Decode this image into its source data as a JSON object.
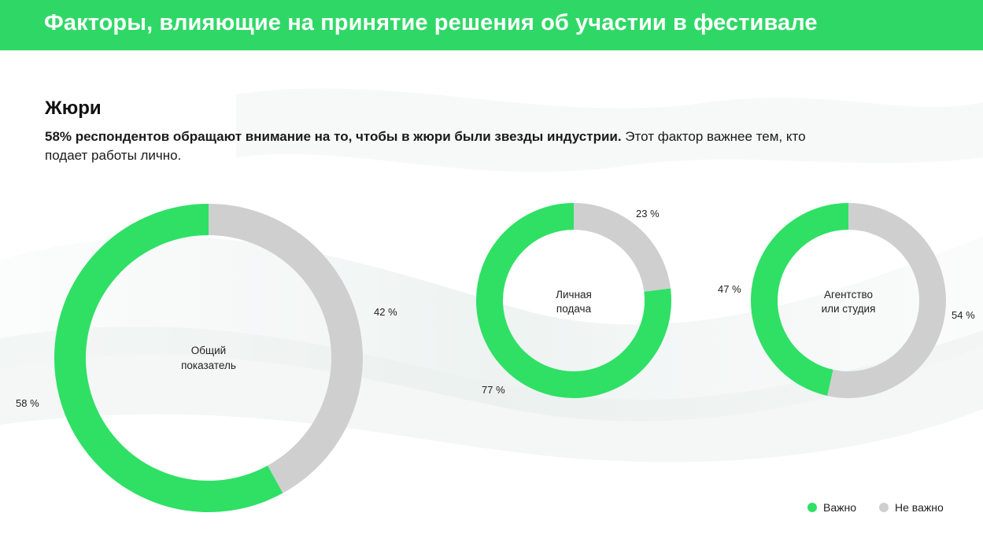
{
  "header": {
    "title": "Факторы, влияющие на принятие решения об участии в фестивале"
  },
  "section": {
    "title": "Жюри",
    "description_bold": "58% респондентов обращают внимание на то, чтобы в жюри были звезды индустрии.",
    "description_rest": " Этот фактор важнее тем, кто подает работы лично."
  },
  "colors": {
    "header": "#2fd866",
    "important": "#2fe065",
    "not_important": "#cfcfcf"
  },
  "legend": {
    "important": "Важно",
    "not_important": "Не важно"
  },
  "chart_data": [
    {
      "type": "pie",
      "center_label": [
        "Общий",
        "показатель"
      ],
      "slices": [
        {
          "name": "Важно",
          "value": 58,
          "label": "58 %"
        },
        {
          "name": "Не важно",
          "value": 42,
          "label": "42 %"
        }
      ]
    },
    {
      "type": "pie",
      "center_label": [
        "Личная",
        "подача"
      ],
      "slices": [
        {
          "name": "Важно",
          "value": 77,
          "label": "77 %"
        },
        {
          "name": "Не важно",
          "value": 23,
          "label": "23 %"
        }
      ]
    },
    {
      "type": "pie",
      "center_label": [
        "Агентство",
        "или студия"
      ],
      "slices": [
        {
          "name": "Важно",
          "value": 47,
          "label": "47 %"
        },
        {
          "name": "Не важно",
          "value": 54,
          "label": "54 %"
        }
      ]
    }
  ]
}
